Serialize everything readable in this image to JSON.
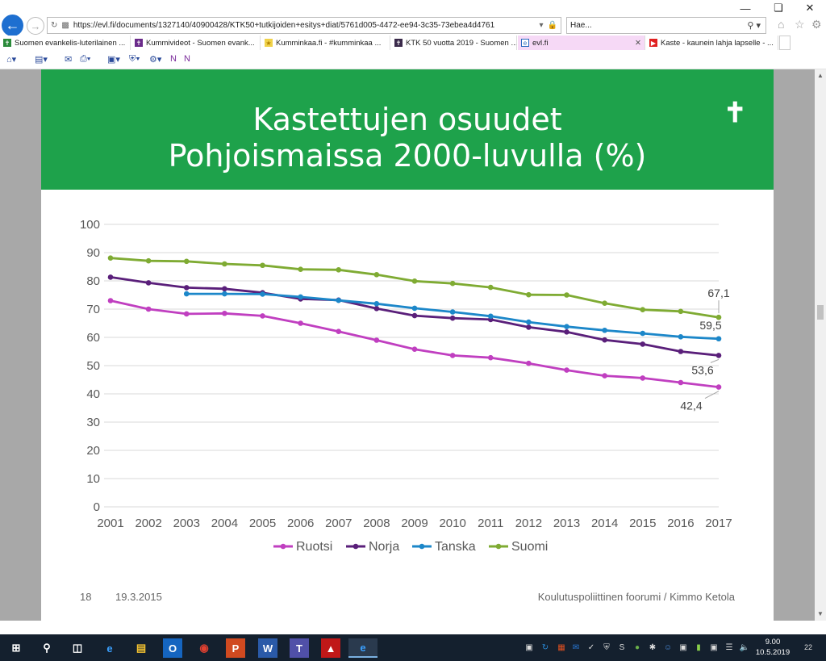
{
  "browser": {
    "url": "https://evl.fi/documents/1327140/40900428/KTK50+tutkijoiden+esitys+diat/5761d005-4472-ee94-3c35-73ebea4d4761",
    "search_placeholder": "Hae...",
    "tabs": [
      {
        "label": "Suomen evankelis-luterilainen ...",
        "icon": "cross-green-icon",
        "active": false
      },
      {
        "label": "Kummivideot - Suomen evank...",
        "icon": "cross-purple-icon",
        "active": false
      },
      {
        "label": "Kumminkaa.fi - #kumminkaa ...",
        "icon": "star-yellow-icon",
        "active": false
      },
      {
        "label": "KTK 50 vuotta 2019 - Suomen ...",
        "icon": "cross-dark-icon",
        "active": false
      },
      {
        "label": "evl.fi",
        "icon": "page-icon",
        "active": true
      },
      {
        "label": "Kaste - kaunein lahja lapselle - ...",
        "icon": "youtube-icon",
        "active": false
      }
    ]
  },
  "slide": {
    "title_line1": "Kastettujen osuudet",
    "title_line2": "Pohjoismaissa 2000-luvulla (%)",
    "footer_number": "18",
    "footer_date": "19.3.2015",
    "footer_author": "Koulutuspoliittinen foorumi / Kimmo Ketola",
    "header_color": "#1ea24b"
  },
  "chart_data": {
    "type": "line",
    "title": "Kastettujen osuudet Pohjoismaissa 2000-luvulla (%)",
    "xlabel": "",
    "ylabel": "",
    "ylim": [
      0,
      100
    ],
    "yticks": [
      0,
      10,
      20,
      30,
      40,
      50,
      60,
      70,
      80,
      90,
      100
    ],
    "grid": true,
    "legend_position": "bottom",
    "x": [
      2001,
      2002,
      2003,
      2004,
      2005,
      2006,
      2007,
      2008,
      2009,
      2010,
      2011,
      2012,
      2013,
      2014,
      2015,
      2016,
      2017
    ],
    "series": [
      {
        "name": "Ruotsi",
        "color": "#c03fc0",
        "values": [
          73.0,
          70.0,
          68.3,
          68.5,
          67.6,
          65.0,
          62.1,
          59.0,
          55.8,
          53.6,
          52.8,
          50.8,
          48.4,
          46.4,
          45.6,
          44.0,
          42.4
        ]
      },
      {
        "name": "Norja",
        "color": "#5a1f7a",
        "values": [
          81.3,
          79.3,
          77.6,
          77.2,
          75.8,
          73.6,
          73.2,
          70.2,
          67.7,
          66.8,
          66.3,
          63.6,
          61.9,
          59.1,
          57.6,
          55.0,
          53.6
        ]
      },
      {
        "name": "Tanska",
        "color": "#1c87c9",
        "values": [
          null,
          null,
          75.4,
          75.4,
          75.3,
          74.3,
          73.1,
          71.9,
          70.3,
          69.0,
          67.5,
          65.4,
          63.8,
          62.5,
          61.4,
          60.2,
          59.5
        ]
      },
      {
        "name": "Suomi",
        "color": "#7fab33",
        "values": [
          88.1,
          87.1,
          86.9,
          86.0,
          85.5,
          84.1,
          83.9,
          82.2,
          79.9,
          79.1,
          77.7,
          75.1,
          75.0,
          72.1,
          69.8,
          69.2,
          67.1
        ]
      }
    ],
    "annotations": [
      {
        "series": "Suomi",
        "label": "67,1"
      },
      {
        "series": "Tanska",
        "label": "59,5"
      },
      {
        "series": "Norja",
        "label": "53,6"
      },
      {
        "series": "Ruotsi",
        "label": "42,4"
      }
    ]
  },
  "taskbar": {
    "clock_time": "9.00",
    "clock_date": "10.5.2019",
    "notification_count": "22",
    "apps": [
      "start-icon",
      "search-icon",
      "task-view-icon",
      "edge-icon",
      "file-explorer-icon",
      "outlook-icon",
      "chrome-icon",
      "powerpoint-icon",
      "word-icon",
      "teams-icon",
      "acrobat-icon",
      "internet-explorer-icon"
    ]
  }
}
